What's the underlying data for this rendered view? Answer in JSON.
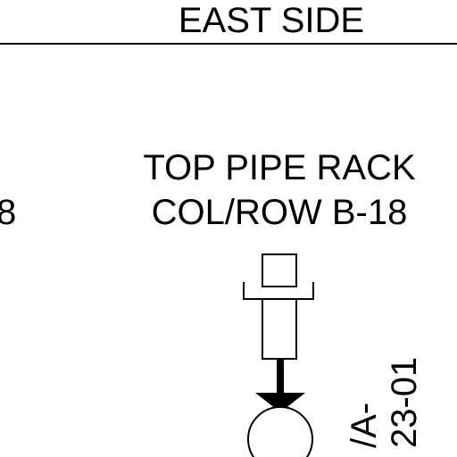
{
  "header": {
    "text": "EAST SIDE"
  },
  "location_label": {
    "line1": "TOP PIPE RACK",
    "line2": "COL/ROW B-18"
  },
  "left_partial_label": {
    "text": "8"
  },
  "instrument_tag": {
    "line1": "/A-",
    "line2": "23-01"
  },
  "colors": {
    "ink": "#000000",
    "background": "#ffffff"
  }
}
